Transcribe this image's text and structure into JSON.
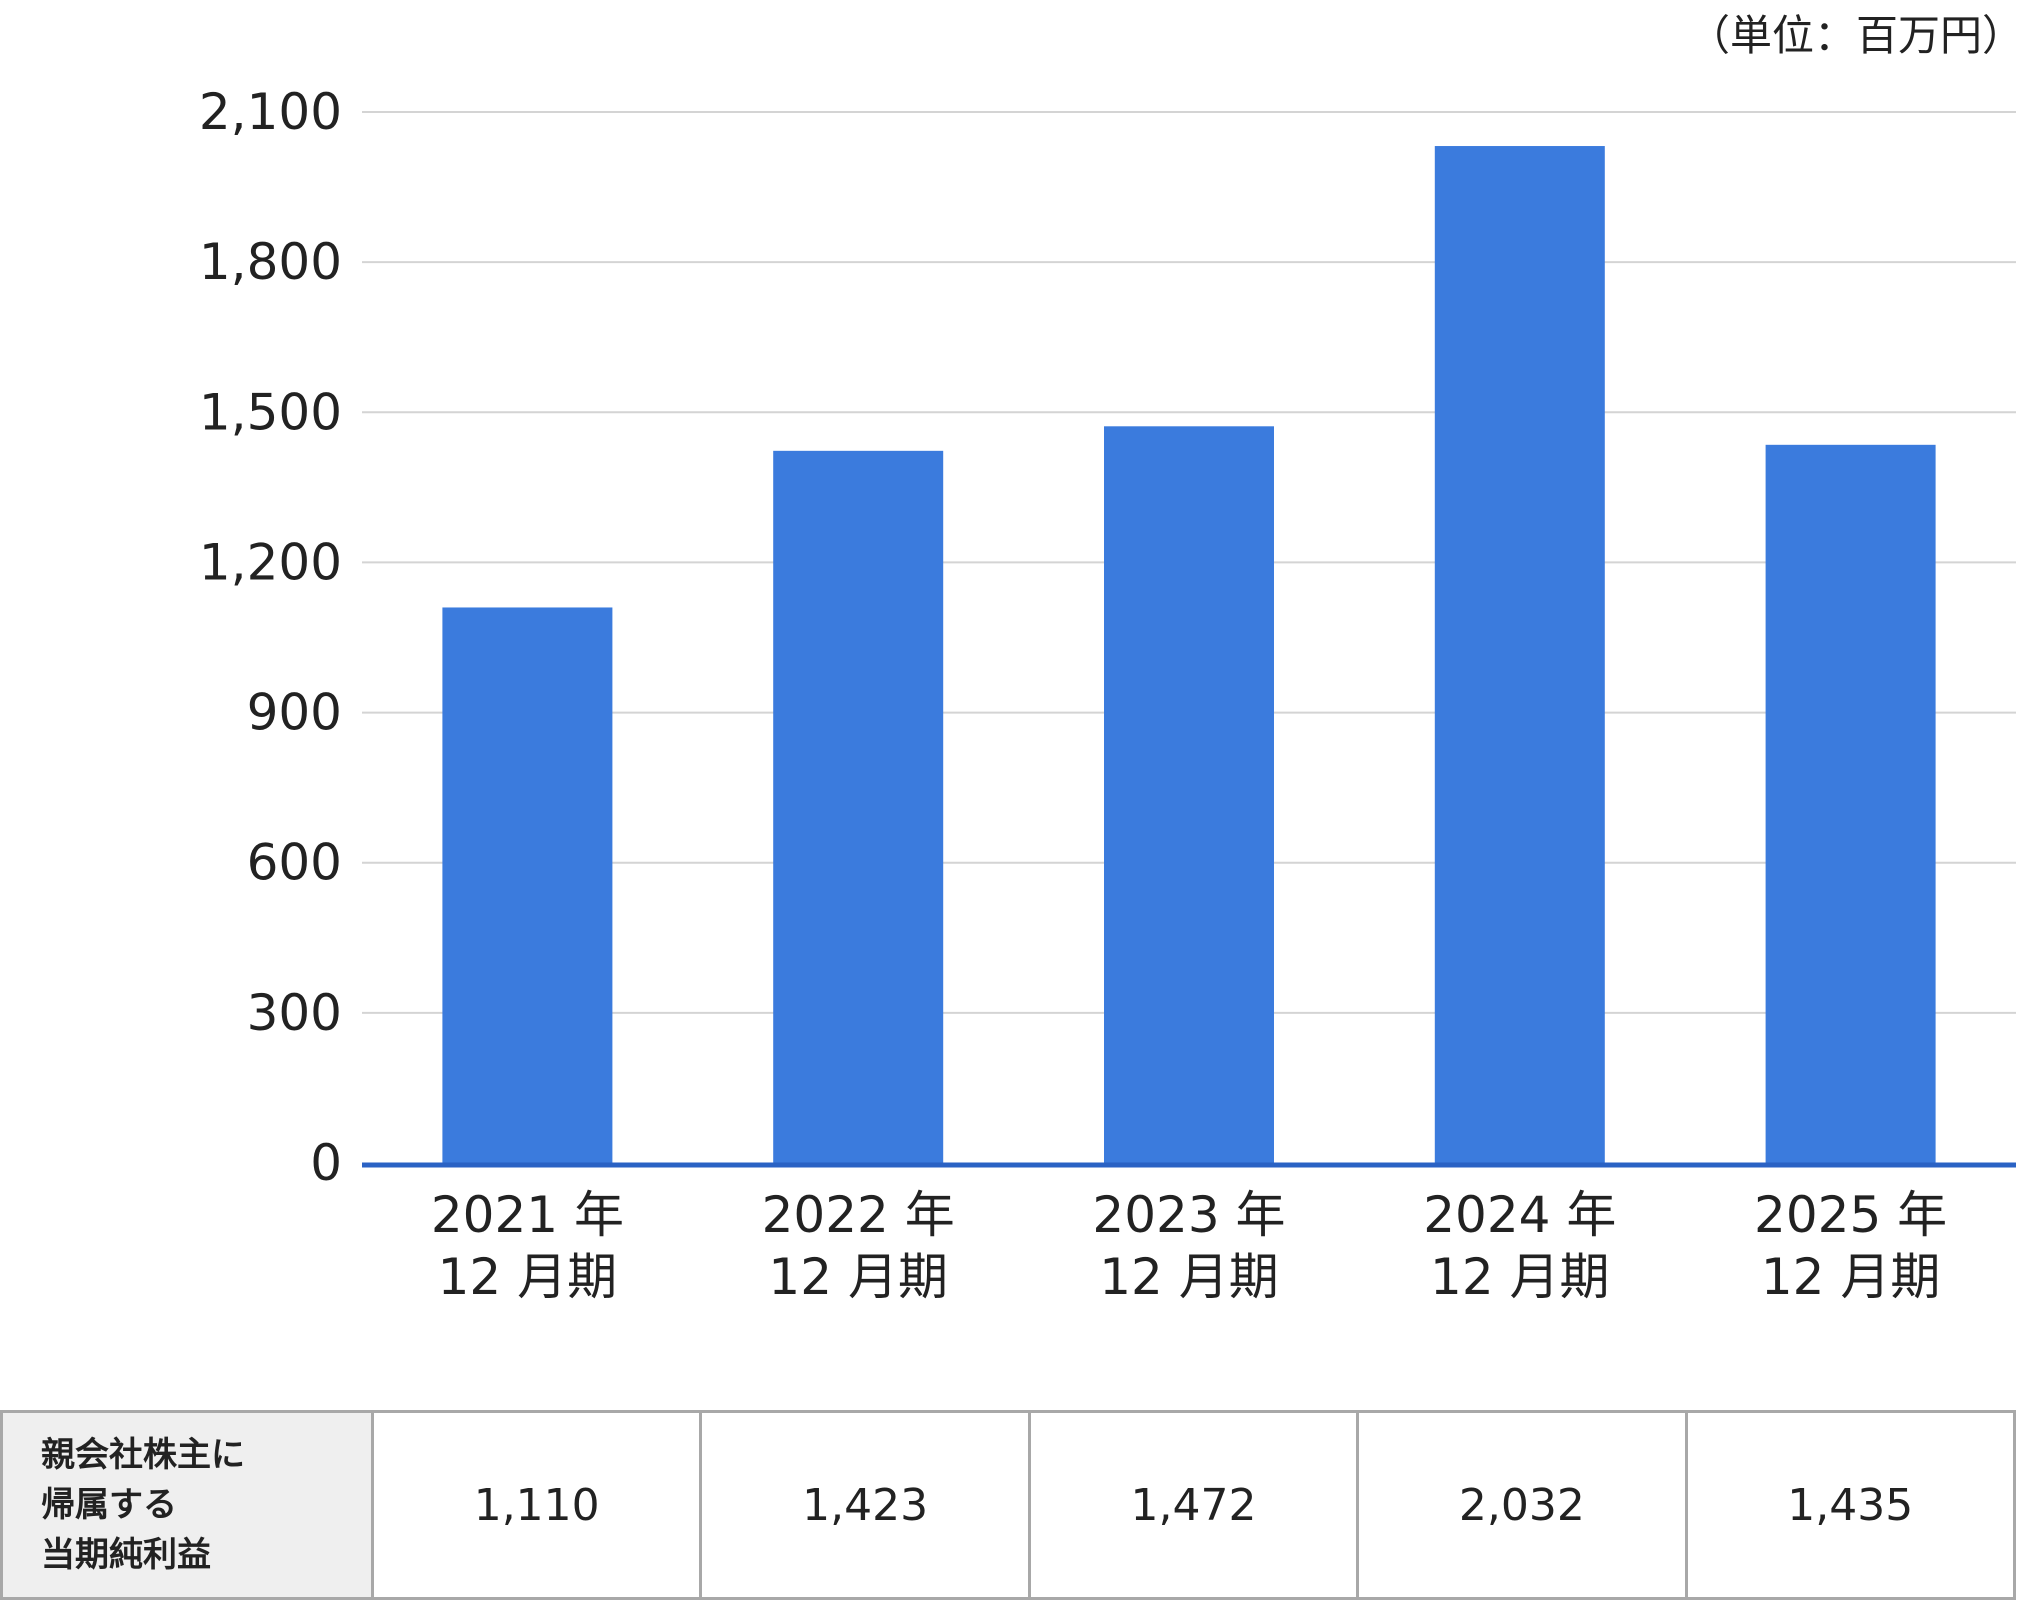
{
  "unit_label": "（単位：百万円）",
  "chart_data": {
    "type": "bar",
    "categories": [
      [
        "2021 年",
        "12 月期"
      ],
      [
        "2022 年",
        "12 月期"
      ],
      [
        "2023 年",
        "12 月期"
      ],
      [
        "2024 年",
        "12 月期"
      ],
      [
        "2025 年",
        "12 月期"
      ]
    ],
    "values": [
      1110,
      1423,
      1472,
      2032,
      1435
    ],
    "ylim": [
      0,
      2100
    ],
    "yticks": [
      0,
      300,
      600,
      900,
      1200,
      1500,
      1800,
      2100
    ],
    "ytick_labels": [
      "0",
      "300",
      "600",
      "900",
      "1,200",
      "1,500",
      "1,800",
      "2,100"
    ],
    "bar_color": "#3b7bdd",
    "axis_color": "#2a62c4",
    "grid": true
  },
  "table": {
    "row_header": [
      "親会社株主に",
      "帰属する",
      "当期純利益"
    ],
    "values": [
      "1,110",
      "1,423",
      "1,472",
      "2,032",
      "1,435"
    ]
  }
}
